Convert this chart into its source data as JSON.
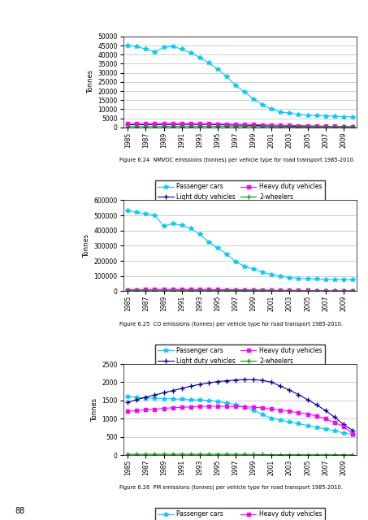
{
  "years": [
    1985,
    1986,
    1987,
    1988,
    1989,
    1990,
    1991,
    1992,
    1993,
    1994,
    1995,
    1996,
    1997,
    1998,
    1999,
    2000,
    2001,
    2002,
    2003,
    2004,
    2005,
    2006,
    2007,
    2008,
    2009,
    2010
  ],
  "chart1": {
    "title": "Figure 6.24  NMVOC emissions (tonnes) per vehicle type for road transport 1985-2010.",
    "ylabel": "Tonnes",
    "ylim": [
      0,
      50000
    ],
    "yticks": [
      0,
      5000,
      10000,
      15000,
      20000,
      25000,
      30000,
      35000,
      40000,
      45000,
      50000
    ],
    "passenger_cars": [
      45000,
      44500,
      43000,
      41500,
      44000,
      44500,
      43000,
      41000,
      38500,
      35500,
      32000,
      28000,
      23000,
      19500,
      15500,
      12500,
      10000,
      8500,
      7800,
      7200,
      6800,
      6500,
      6300,
      6100,
      5900,
      5800
    ],
    "light_duty": [
      1500,
      1500,
      1500,
      1500,
      1500,
      1600,
      1600,
      1600,
      1600,
      1600,
      1500,
      1400,
      1300,
      1200,
      1100,
      900,
      800,
      700,
      600,
      500,
      450,
      400,
      350,
      300,
      280,
      260
    ],
    "heavy_duty": [
      2000,
      2000,
      2000,
      2100,
      2100,
      2100,
      2100,
      2100,
      2000,
      2000,
      1900,
      1800,
      1800,
      1700,
      1600,
      1400,
      1300,
      1200,
      1100,
      1000,
      900,
      800,
      700,
      600,
      500,
      450
    ],
    "two_wheelers": [
      400,
      420,
      440,
      450,
      460,
      470,
      480,
      490,
      500,
      510,
      500,
      490,
      470,
      450,
      430,
      380,
      340,
      300,
      260,
      230,
      210,
      190,
      175,
      160,
      150,
      140
    ]
  },
  "chart2": {
    "title": "Figure 6.25  CO emissions (tonnes) per vehicle type for road transport 1985-2010.",
    "ylabel": "Tonnes",
    "ylim": [
      0,
      600000
    ],
    "yticks": [
      0,
      100000,
      200000,
      300000,
      400000,
      500000,
      600000
    ],
    "passenger_cars": [
      530000,
      520000,
      510000,
      500000,
      430000,
      445000,
      435000,
      415000,
      375000,
      325000,
      285000,
      245000,
      195000,
      165000,
      145000,
      125000,
      110000,
      100000,
      90000,
      85000,
      82000,
      80000,
      79000,
      78000,
      77000,
      75000
    ],
    "light_duty": [
      8000,
      8000,
      8000,
      8500,
      8500,
      8500,
      8500,
      8000,
      8000,
      7500,
      7000,
      6500,
      6000,
      5500,
      5000,
      4500,
      4000,
      3500,
      3000,
      2800,
      2600,
      2400,
      2200,
      2000,
      1800,
      1700
    ],
    "heavy_duty": [
      10000,
      10000,
      10500,
      11000,
      11000,
      11500,
      11500,
      11500,
      11000,
      11000,
      10500,
      10000,
      9500,
      9000,
      8500,
      8000,
      7000,
      6500,
      6000,
      5500,
      5000,
      4500,
      4000,
      3500,
      3000,
      2800
    ],
    "two_wheelers": [
      3000,
      3000,
      3000,
      3000,
      3000,
      3000,
      3000,
      3000,
      3000,
      3000,
      2900,
      2800,
      2700,
      2600,
      2400,
      2200,
      2000,
      1800,
      1600,
      1400,
      1300,
      1200,
      1100,
      1000,
      900,
      850
    ]
  },
  "chart3": {
    "title": "Figure 6.26  PM emissions (tonnes) per vehicle type for road transport 1985-2010.",
    "ylabel": "Tonnes",
    "ylim": [
      0,
      2500
    ],
    "yticks": [
      0,
      500,
      1000,
      1500,
      2000,
      2500
    ],
    "passenger_cars": [
      1600,
      1580,
      1570,
      1560,
      1550,
      1540,
      1530,
      1520,
      1510,
      1500,
      1470,
      1430,
      1380,
      1310,
      1230,
      1110,
      1010,
      960,
      910,
      860,
      810,
      760,
      710,
      660,
      610,
      560
    ],
    "light_duty": [
      1450,
      1520,
      1590,
      1650,
      1710,
      1770,
      1830,
      1890,
      1940,
      1980,
      2020,
      2040,
      2060,
      2070,
      2070,
      2050,
      2000,
      1890,
      1780,
      1660,
      1520,
      1380,
      1220,
      1040,
      840,
      680
    ],
    "heavy_duty": [
      1200,
      1220,
      1240,
      1260,
      1280,
      1300,
      1310,
      1320,
      1330,
      1340,
      1340,
      1335,
      1330,
      1325,
      1315,
      1295,
      1265,
      1235,
      1200,
      1165,
      1125,
      1075,
      995,
      890,
      790,
      580
    ],
    "two_wheelers": [
      20,
      20,
      20,
      20,
      20,
      20,
      20,
      20,
      20,
      20,
      20,
      20,
      18,
      16,
      14,
      12,
      10,
      10,
      10,
      8,
      8,
      8,
      8,
      8,
      8,
      8
    ]
  },
  "colors": {
    "passenger_cars": "#00CCFF",
    "light_duty": "#000099",
    "heavy_duty": "#FF00FF",
    "two_wheelers": "#009900"
  },
  "legend_labels": [
    "Passenger cars",
    "Light duty vehicles",
    "Heavy duty vehicles",
    "2-wheelers"
  ],
  "page_number": "88",
  "background": "#ffffff"
}
